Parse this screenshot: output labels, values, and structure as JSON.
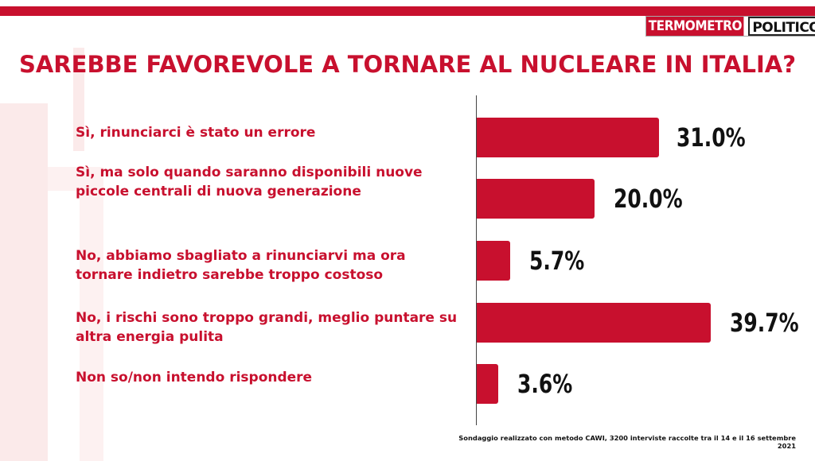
{
  "header": {
    "logo_part1": "TERMOMETRO",
    "logo_part2": "POLITICO",
    "brand_color": "#c8102e"
  },
  "chart_data": {
    "type": "bar",
    "orientation": "horizontal",
    "title": "SAREBBE FAVOREVOLE A TORNARE AL NUCLEARE IN ITALIA?",
    "categories": [
      "Sì, rinunciarci è stato un errore",
      "Sì, ma solo quando saranno disponibili nuove piccole centrali di nuova generazione",
      "No, abbiamo sbagliato a rinunciarvi ma ora tornare indietro sarebbe troppo costoso",
      "No, i rischi sono troppo grandi, meglio puntare su altra energia pulita",
      "Non so/non intendo rispondere"
    ],
    "values": [
      31.0,
      20.0,
      5.7,
      39.7,
      3.6
    ],
    "value_labels": [
      "31.0%",
      "20.0%",
      "5.7%",
      "39.7%",
      "3.6%"
    ],
    "unit": "%",
    "xlim": [
      0,
      40
    ],
    "grid": false,
    "legend": "none",
    "bar_color": "#c8102e"
  },
  "footnote": "Sondaggio realizzato con metodo CAWI, 3200 interviste raccolte tra il 14 e il 16  settembre 2021"
}
